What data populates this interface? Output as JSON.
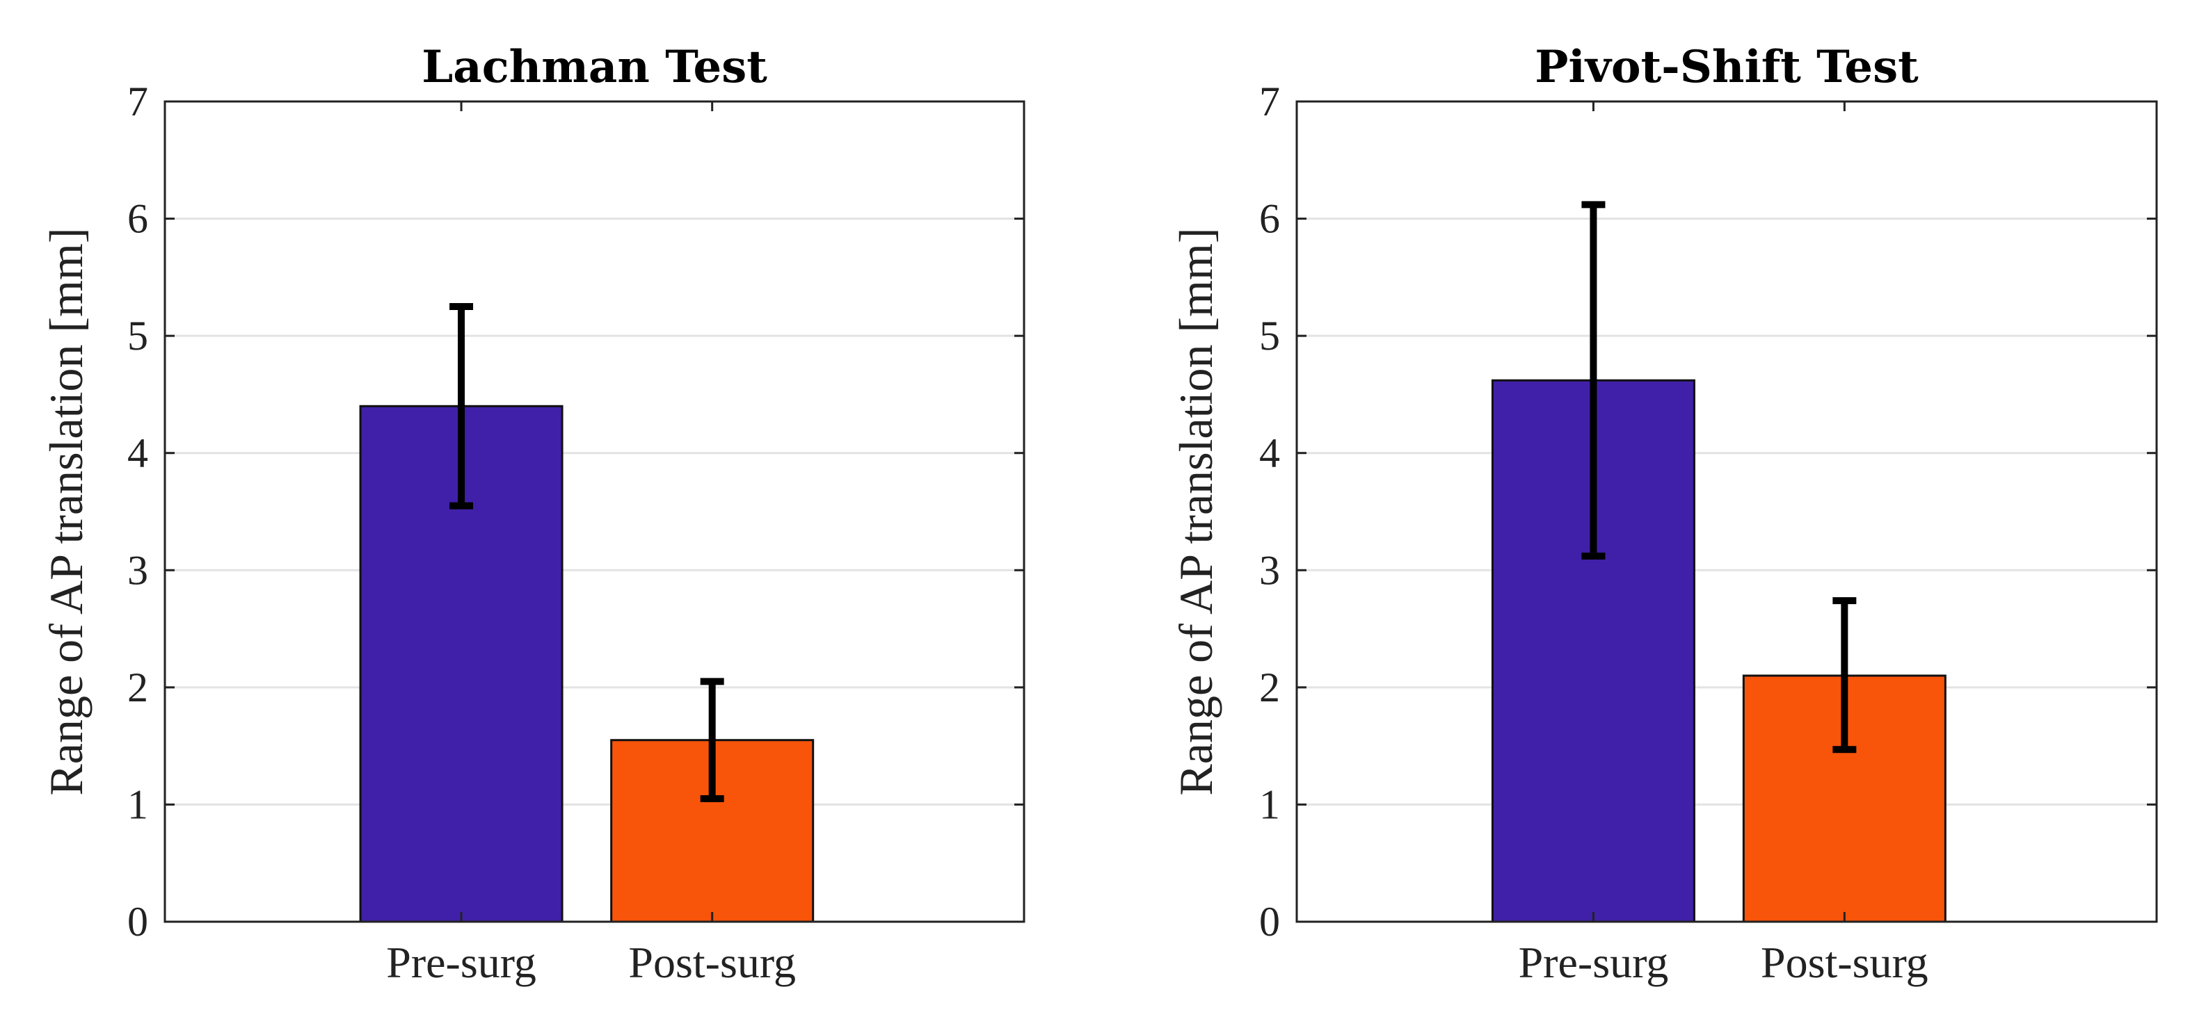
{
  "chart_data": [
    {
      "type": "bar",
      "title": "Lachman Test",
      "ylabel": "Range of AP translation [mm]",
      "xlabel": "",
      "ylim": [
        0,
        7
      ],
      "yticks": [
        "0",
        "1",
        "2",
        "3",
        "4",
        "5",
        "6",
        "7"
      ],
      "grid": true,
      "categories": [
        "Pre-surg",
        "Post-surg"
      ],
      "values": [
        4.4,
        1.55
      ],
      "error_low": [
        3.55,
        1.05
      ],
      "error_high": [
        5.25,
        2.05
      ],
      "colors": [
        "#4020a8",
        "#f8540a"
      ]
    },
    {
      "type": "bar",
      "title": "Pivot-Shift Test",
      "ylabel": "Range of AP translation [mm]",
      "xlabel": "",
      "ylim": [
        0,
        7
      ],
      "yticks": [
        "0",
        "1",
        "2",
        "3",
        "4",
        "5",
        "6",
        "7"
      ],
      "grid": true,
      "categories": [
        "Pre-surg",
        "Post-surg"
      ],
      "values": [
        4.62,
        2.1
      ],
      "error_low": [
        3.12,
        1.47
      ],
      "error_high": [
        6.12,
        2.74
      ],
      "colors": [
        "#4020a8",
        "#f8540a"
      ]
    }
  ]
}
